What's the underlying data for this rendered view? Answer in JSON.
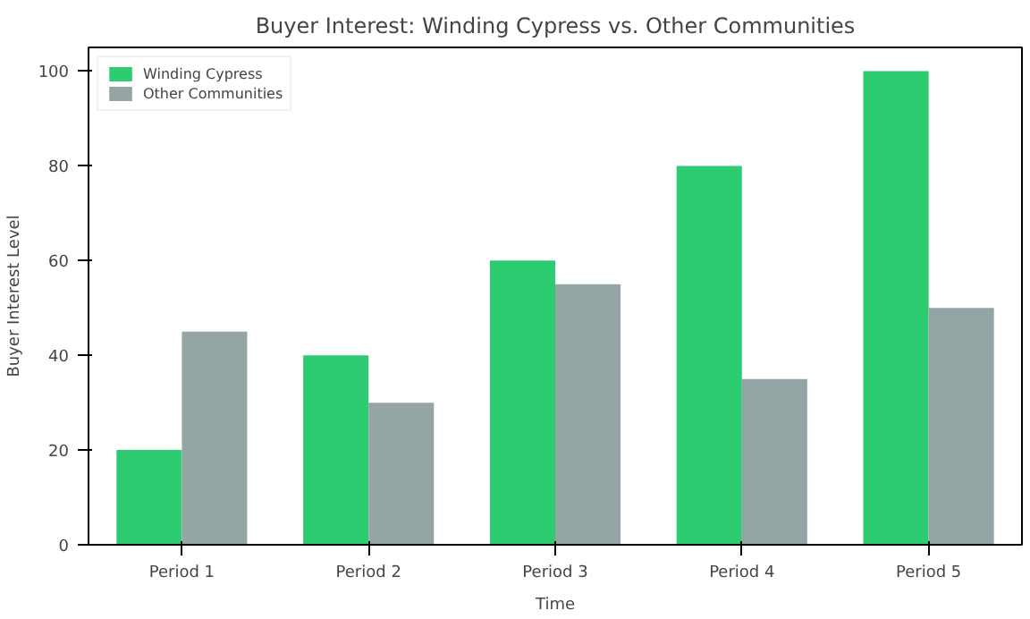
{
  "chart_data": {
    "type": "bar",
    "title": "Buyer Interest: Winding Cypress vs. Other Communities",
    "xlabel": "Time",
    "ylabel": "Buyer Interest Level",
    "categories": [
      "Period 1",
      "Period 2",
      "Period 3",
      "Period 4",
      "Period 5"
    ],
    "series": [
      {
        "name": "Winding Cypress",
        "color": "#2ecc71",
        "values": [
          20,
          40,
          60,
          80,
          100
        ]
      },
      {
        "name": "Other Communities",
        "color": "#95a5a6",
        "values": [
          45,
          30,
          55,
          35,
          50
        ]
      }
    ],
    "ylim": [
      0,
      105
    ],
    "yticks": [
      0,
      20,
      40,
      60,
      80,
      100
    ],
    "grid": false,
    "legend": "top left"
  }
}
